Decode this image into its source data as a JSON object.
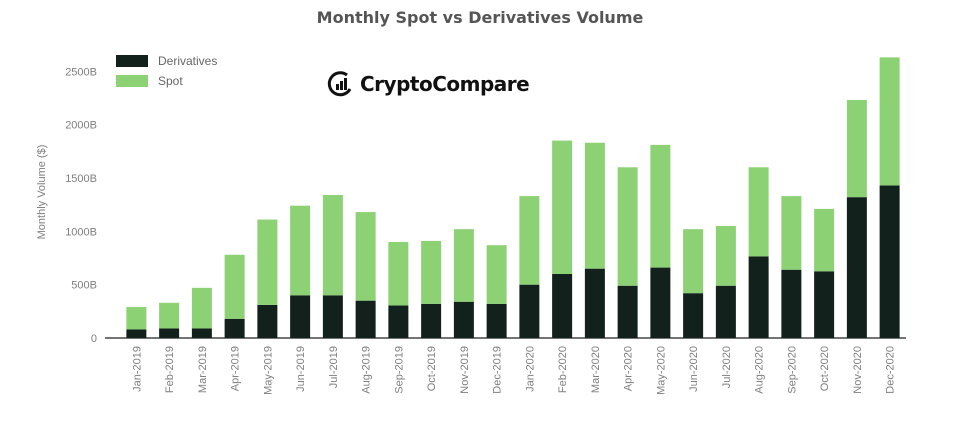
{
  "chart_data": {
    "type": "bar",
    "stacked": true,
    "title": "Monthly Spot vs Derivatives Volume",
    "ylabel": "Monthly Volume ($)",
    "xlabel": "",
    "ylim": [
      0,
      2600
    ],
    "yticks": [
      0,
      500,
      1000,
      1500,
      2000,
      2500
    ],
    "ytick_labels": [
      "0",
      "500B",
      "1000B",
      "1500B",
      "2000B",
      "2500B"
    ],
    "legend_position": "top-left",
    "categories": [
      "Jan-2019",
      "Feb-2019",
      "Mar-2019",
      "Apr-2019",
      "May-2019",
      "Jun-2019",
      "Jul-2019",
      "Aug-2019",
      "Sep-2019",
      "Oct-2019",
      "Nov-2019",
      "Dec-2019",
      "Jan-2020",
      "Feb-2020",
      "Mar-2020",
      "Apr-2020",
      "May-2020",
      "Jun-2020",
      "Jul-2020",
      "Aug-2020",
      "Sep-2020",
      "Oct-2020",
      "Nov-2020",
      "Dec-2020"
    ],
    "series": [
      {
        "name": "Derivatives",
        "color": "#13211c",
        "values": [
          80,
          90,
          90,
          180,
          310,
          400,
          400,
          350,
          305,
          320,
          340,
          320,
          500,
          600,
          650,
          490,
          660,
          420,
          490,
          765,
          640,
          625,
          1320,
          1430
        ]
      },
      {
        "name": "Spot",
        "color": "#8cd174",
        "values": [
          210,
          240,
          380,
          600,
          800,
          840,
          940,
          830,
          595,
          590,
          680,
          550,
          830,
          1250,
          1180,
          1110,
          1150,
          600,
          560,
          835,
          690,
          585,
          910,
          1200
        ]
      }
    ]
  },
  "brand": {
    "name": "CryptoCompare",
    "icon": "cryptocompare-logo-icon"
  }
}
